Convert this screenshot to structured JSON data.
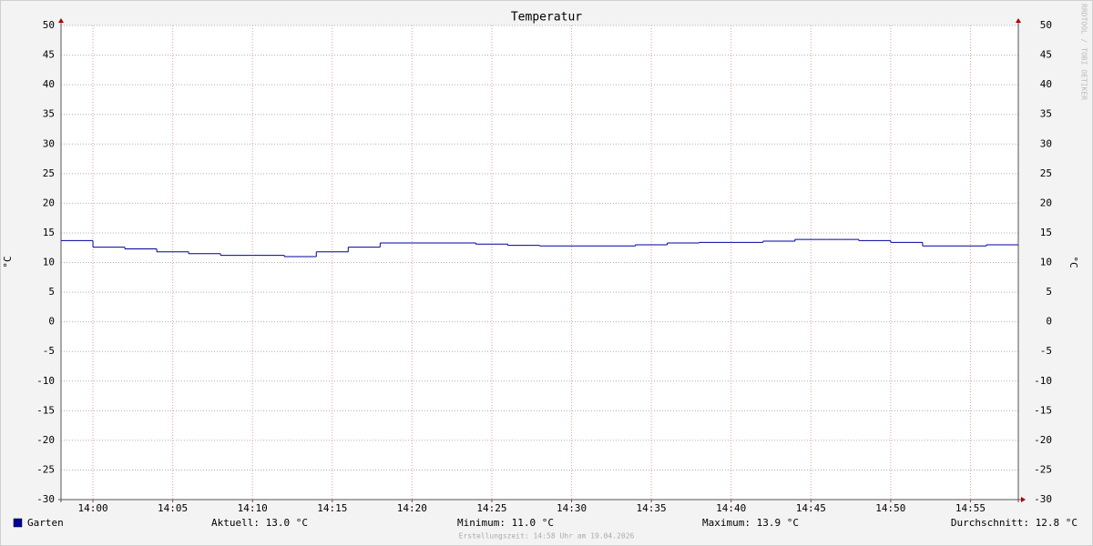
{
  "chart_data": {
    "type": "line",
    "title": "Temperatur",
    "y_label": "°C",
    "y2_label": "°C",
    "watermark": "RRDTOOL / TOBI OETIKER",
    "x": [
      838,
      840,
      842,
      844,
      846,
      848,
      850,
      852,
      854,
      856,
      858,
      860,
      862,
      864,
      866,
      868,
      870,
      872,
      874,
      876,
      878,
      880,
      882,
      884,
      886,
      888,
      890,
      892,
      894,
      896
    ],
    "xlim": [
      838,
      898
    ],
    "xticks": [
      {
        "value": 840,
        "label": "14:00"
      },
      {
        "value": 845,
        "label": "14:05"
      },
      {
        "value": 850,
        "label": "14:10"
      },
      {
        "value": 855,
        "label": "14:15"
      },
      {
        "value": 860,
        "label": "14:20"
      },
      {
        "value": 865,
        "label": "14:25"
      },
      {
        "value": 870,
        "label": "14:30"
      },
      {
        "value": 875,
        "label": "14:35"
      },
      {
        "value": 880,
        "label": "14:40"
      },
      {
        "value": 885,
        "label": "14:45"
      },
      {
        "value": 890,
        "label": "14:50"
      },
      {
        "value": 895,
        "label": "14:55"
      }
    ],
    "ylim": [
      -30,
      50
    ],
    "yticks": [
      -30,
      -25,
      -20,
      -15,
      -10,
      -5,
      0,
      5,
      10,
      15,
      20,
      25,
      30,
      35,
      40,
      45,
      50
    ],
    "step": true,
    "grid": true,
    "series": [
      {
        "name": "Garten",
        "color": "#00009c",
        "values": [
          13.7,
          12.6,
          12.3,
          11.8,
          11.5,
          11.2,
          11.2,
          11.0,
          11.8,
          12.6,
          13.3,
          13.3,
          13.3,
          13.1,
          12.9,
          12.8,
          12.8,
          12.8,
          13.0,
          13.3,
          13.4,
          13.4,
          13.6,
          13.9,
          13.9,
          13.7,
          13.4,
          12.8,
          12.8,
          13.0
        ]
      }
    ],
    "stats": [
      "Aktuell: 13.0 °C",
      "Minimum: 11.0 °C",
      "Maximum: 13.9 °C",
      "Durchschnitt: 12.8 °C"
    ],
    "footer": "Erstellungszeit: 14:58 Uhr am 19.04.2026"
  }
}
